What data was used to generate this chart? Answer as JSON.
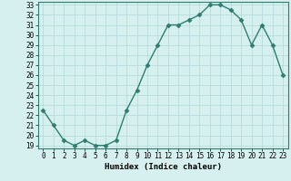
{
  "x": [
    0,
    1,
    2,
    3,
    4,
    5,
    6,
    7,
    8,
    9,
    10,
    11,
    12,
    13,
    14,
    15,
    16,
    17,
    18,
    19,
    20,
    21,
    22,
    23
  ],
  "y": [
    22.5,
    21.0,
    19.5,
    19.0,
    19.5,
    19.0,
    19.0,
    19.5,
    22.5,
    24.5,
    27.0,
    29.0,
    31.0,
    31.0,
    31.5,
    32.0,
    33.0,
    33.0,
    32.5,
    31.5,
    29.0,
    31.0,
    29.0,
    26.0
  ],
  "line_color": "#2e7d6e",
  "marker_color": "#2e7d6e",
  "bg_color": "#d6f0f0",
  "grid_color": "#b0d8d8",
  "xlabel": "Humidex (Indice chaleur)",
  "ylim_min": 19,
  "ylim_max": 33,
  "xlim_min": -0.5,
  "xlim_max": 23.5,
  "yticks": [
    19,
    20,
    21,
    22,
    23,
    24,
    25,
    26,
    27,
    28,
    29,
    30,
    31,
    32,
    33
  ],
  "xticks": [
    0,
    1,
    2,
    3,
    4,
    5,
    6,
    7,
    8,
    9,
    10,
    11,
    12,
    13,
    14,
    15,
    16,
    17,
    18,
    19,
    20,
    21,
    22,
    23
  ],
  "xlabel_fontsize": 6.5,
  "tick_fontsize": 5.5,
  "line_width": 1.0,
  "marker_size": 2.5
}
